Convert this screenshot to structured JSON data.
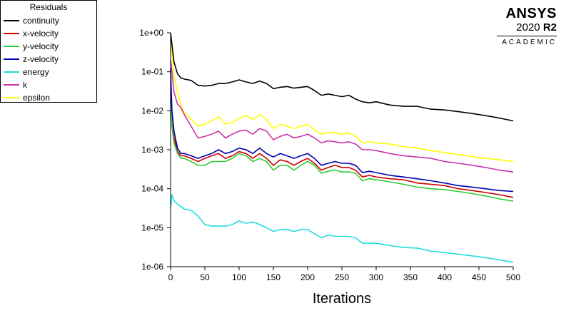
{
  "legend": {
    "title": "Residuals"
  },
  "brand": {
    "name": "ANSYS",
    "version_year": "2020",
    "version_release": "R2",
    "edition": "ACADEMIC"
  },
  "chart_data": {
    "type": "line",
    "title": "",
    "xlabel": "Iterations",
    "ylabel": "",
    "xlim": [
      0,
      500
    ],
    "ylim": [
      1e-06,
      1
    ],
    "yscale": "log",
    "grid": false,
    "legend_position": "top-left",
    "x_ticks": [
      "0",
      "50",
      "100",
      "150",
      "200",
      "250",
      "300",
      "350",
      "400",
      "450",
      "500"
    ],
    "y_ticks": [
      "1e-06",
      "1e-05",
      "1e-04",
      "1e-03",
      "1e-02",
      "1e-01",
      "1e+00"
    ],
    "x": [
      0,
      2,
      5,
      10,
      15,
      20,
      30,
      40,
      50,
      60,
      70,
      80,
      90,
      100,
      110,
      120,
      130,
      140,
      150,
      160,
      170,
      180,
      190,
      200,
      210,
      220,
      230,
      240,
      250,
      260,
      270,
      280,
      290,
      300,
      320,
      340,
      360,
      380,
      400,
      420,
      440,
      460,
      480,
      500
    ],
    "series": [
      {
        "name": "continuity",
        "color": "#000000",
        "values": [
          1.0,
          0.5,
          0.18,
          0.09,
          0.07,
          0.065,
          0.06,
          0.045,
          0.043,
          0.045,
          0.05,
          0.05,
          0.055,
          0.062,
          0.055,
          0.05,
          0.058,
          0.05,
          0.037,
          0.04,
          0.042,
          0.038,
          0.04,
          0.042,
          0.033,
          0.025,
          0.027,
          0.025,
          0.023,
          0.025,
          0.02,
          0.017,
          0.016,
          0.017,
          0.014,
          0.013,
          0.013,
          0.011,
          0.0105,
          0.0095,
          0.0085,
          0.0075,
          0.0065,
          0.0055
        ]
      },
      {
        "name": "x-velocity",
        "color": "#cc0000",
        "values": [
          0.02,
          0.005,
          0.002,
          0.0009,
          0.0007,
          0.0007,
          0.0006,
          0.0005,
          0.0006,
          0.0007,
          0.0008,
          0.0006,
          0.0007,
          0.0009,
          0.0008,
          0.0006,
          0.0008,
          0.0006,
          0.0004,
          0.00055,
          0.0005,
          0.0004,
          0.0005,
          0.0006,
          0.00045,
          0.0003,
          0.00035,
          0.0004,
          0.00035,
          0.00035,
          0.0003,
          0.0002,
          0.00022,
          0.0002,
          0.00018,
          0.00017,
          0.00014,
          0.00013,
          0.00012,
          0.0001,
          9e-05,
          8e-05,
          7e-05,
          6e-05
        ]
      },
      {
        "name": "y-velocity",
        "color": "#33cc33",
        "values": [
          0.02,
          0.004,
          0.0015,
          0.0008,
          0.0006,
          0.0006,
          0.0005,
          0.0004,
          0.0004,
          0.0005,
          0.0005,
          0.0005,
          0.0006,
          0.0008,
          0.0007,
          0.0005,
          0.0006,
          0.0005,
          0.0003,
          0.0004,
          0.0004,
          0.0003,
          0.0004,
          0.0005,
          0.0004,
          0.00025,
          0.00028,
          0.0003,
          0.00027,
          0.00027,
          0.00025,
          0.00016,
          0.00018,
          0.00017,
          0.00015,
          0.00013,
          0.00011,
          0.0001,
          9.5e-05,
          8.5e-05,
          7.5e-05,
          6.5e-05,
          5.5e-05,
          4.8e-05
        ]
      },
      {
        "name": "z-velocity",
        "color": "#0000b3",
        "values": [
          0.12,
          0.01,
          0.003,
          0.0011,
          0.0008,
          0.0008,
          0.0007,
          0.0006,
          0.0007,
          0.0008,
          0.001,
          0.0008,
          0.0009,
          0.0011,
          0.001,
          0.0008,
          0.0011,
          0.0008,
          0.00065,
          0.0008,
          0.0007,
          0.0006,
          0.0007,
          0.0008,
          0.0006,
          0.0004,
          0.00045,
          0.0005,
          0.00045,
          0.00045,
          0.0004,
          0.00026,
          0.00028,
          0.00026,
          0.00022,
          0.0002,
          0.00018,
          0.00016,
          0.00014,
          0.00012,
          0.00011,
          0.0001,
          9e-05,
          8.5e-05
        ]
      },
      {
        "name": "energy",
        "color": "#22dddd",
        "values": [
          3e-05,
          7e-05,
          5e-05,
          4e-05,
          3.5e-05,
          3e-05,
          2.8e-05,
          2e-05,
          1.2e-05,
          1.1e-05,
          1.1e-05,
          1.1e-05,
          1.2e-05,
          1.5e-05,
          1.3e-05,
          1.4e-05,
          1.2e-05,
          1e-05,
          8e-06,
          9e-06,
          9e-06,
          8e-06,
          9e-06,
          9e-06,
          7e-06,
          5.5e-06,
          6.5e-06,
          6e-06,
          6e-06,
          6e-06,
          5.5e-06,
          4e-06,
          4e-06,
          4e-06,
          3.5e-06,
          3.1e-06,
          3e-06,
          2.5e-06,
          2.3e-06,
          2.1e-06,
          1.9e-06,
          1.7e-06,
          1.5e-06,
          1.3e-06
        ]
      },
      {
        "name": "k",
        "color": "#cc33aa",
        "values": [
          0.2,
          0.1,
          0.03,
          0.015,
          0.012,
          0.008,
          0.004,
          0.002,
          0.0022,
          0.0025,
          0.003,
          0.002,
          0.0025,
          0.003,
          0.0032,
          0.0025,
          0.0035,
          0.003,
          0.0018,
          0.0022,
          0.0025,
          0.002,
          0.0022,
          0.0025,
          0.002,
          0.0015,
          0.0017,
          0.0016,
          0.0015,
          0.0016,
          0.0014,
          0.001,
          0.001,
          0.00095,
          0.0008,
          0.0007,
          0.00065,
          0.0006,
          0.0005,
          0.00045,
          0.0004,
          0.00035,
          0.0003,
          0.00027
        ]
      },
      {
        "name": "epsilon",
        "color": "#ffff00",
        "values": [
          1.0,
          0.3,
          0.08,
          0.03,
          0.015,
          0.009,
          0.006,
          0.004,
          0.0045,
          0.0055,
          0.007,
          0.0045,
          0.005,
          0.0065,
          0.0075,
          0.006,
          0.008,
          0.006,
          0.0035,
          0.0045,
          0.004,
          0.0035,
          0.004,
          0.0045,
          0.0032,
          0.0025,
          0.0028,
          0.0027,
          0.0025,
          0.0027,
          0.0022,
          0.0015,
          0.0016,
          0.0015,
          0.0014,
          0.0012,
          0.0011,
          0.00095,
          0.00085,
          0.00075,
          0.00067,
          0.0006,
          0.00055,
          0.0005
        ]
      }
    ]
  }
}
